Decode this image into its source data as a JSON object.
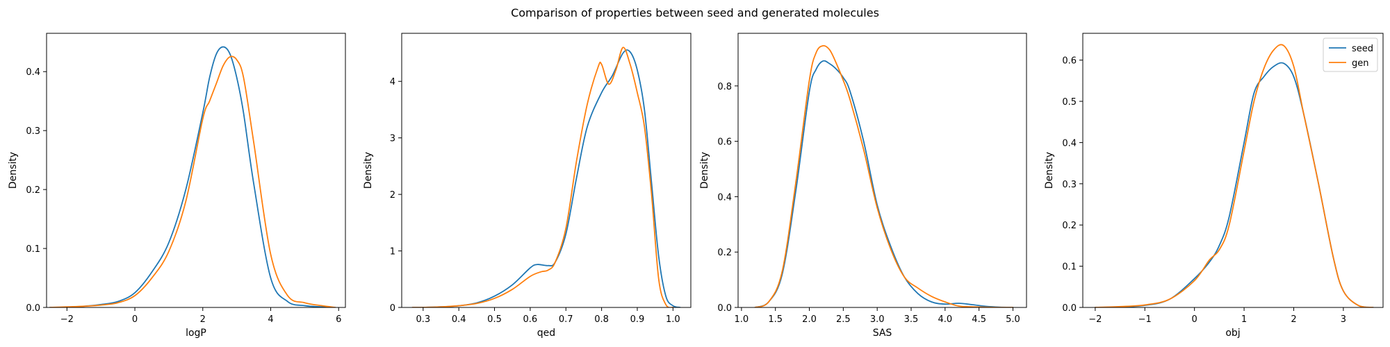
{
  "figure": {
    "title": "Comparison of properties between seed and generated molecules"
  },
  "legend": {
    "placement": "top-right",
    "entries": [
      {
        "label": "seed",
        "color": "#1f77b4"
      },
      {
        "label": "gen",
        "color": "#ff7f0e"
      }
    ]
  },
  "chart_data": [
    {
      "type": "line",
      "title": "",
      "xlabel": "logP",
      "ylabel": "Density",
      "xlim": [
        -2.6,
        6.2
      ],
      "ylim": [
        0,
        0.465
      ],
      "xticks": [
        -2,
        0,
        2,
        4,
        6
      ],
      "xtick_labels": [
        "−2",
        "0",
        "2",
        "4",
        "6"
      ],
      "yticks": [
        0,
        0.1,
        0.2,
        0.3,
        0.4
      ],
      "ytick_labels": [
        "0.0",
        "0.1",
        "0.2",
        "0.3",
        "0.4"
      ],
      "series": [
        {
          "name": "seed",
          "color": "#1f77b4",
          "x": [
            -2.5,
            -2.0,
            -1.5,
            -1.0,
            -0.5,
            0.0,
            0.5,
            1.0,
            1.5,
            2.0,
            2.2,
            2.4,
            2.6,
            2.8,
            3.0,
            3.2,
            3.5,
            4.0,
            4.5,
            5.0,
            5.5,
            5.9
          ],
          "y": [
            0.0,
            0.0,
            0.002,
            0.005,
            0.01,
            0.025,
            0.06,
            0.11,
            0.2,
            0.33,
            0.39,
            0.43,
            0.442,
            0.43,
            0.39,
            0.33,
            0.21,
            0.05,
            0.01,
            0.003,
            0.001,
            0.0
          ]
        },
        {
          "name": "gen",
          "color": "#ff7f0e",
          "x": [
            -2.5,
            -2.0,
            -1.5,
            -1.0,
            -0.5,
            0.0,
            0.5,
            1.0,
            1.5,
            2.0,
            2.2,
            2.4,
            2.6,
            2.8,
            3.0,
            3.2,
            3.5,
            4.0,
            4.5,
            5.0,
            5.5,
            5.9
          ],
          "y": [
            0.0,
            0.001,
            0.002,
            0.004,
            0.008,
            0.02,
            0.05,
            0.095,
            0.18,
            0.32,
            0.35,
            0.38,
            0.41,
            0.425,
            0.42,
            0.39,
            0.28,
            0.09,
            0.02,
            0.008,
            0.003,
            0.0
          ]
        }
      ]
    },
    {
      "type": "line",
      "title": "",
      "xlabel": "qed",
      "ylabel": "Density",
      "xlim": [
        0.24,
        1.05
      ],
      "ylim": [
        0,
        4.85
      ],
      "xticks": [
        0.3,
        0.4,
        0.5,
        0.6,
        0.7,
        0.8,
        0.9,
        1.0
      ],
      "xtick_labels": [
        "0.3",
        "0.4",
        "0.5",
        "0.6",
        "0.7",
        "0.8",
        "0.9",
        "1.0"
      ],
      "yticks": [
        0,
        1,
        2,
        3,
        4
      ],
      "ytick_labels": [
        "0",
        "1",
        "2",
        "3",
        "4"
      ],
      "series": [
        {
          "name": "seed",
          "color": "#1f77b4",
          "x": [
            0.27,
            0.3,
            0.35,
            0.4,
            0.45,
            0.5,
            0.55,
            0.6,
            0.62,
            0.65,
            0.67,
            0.7,
            0.73,
            0.76,
            0.8,
            0.83,
            0.86,
            0.88,
            0.9,
            0.92,
            0.94,
            0.96,
            0.98,
            1.0,
            1.02
          ],
          "y": [
            0.0,
            0.0,
            0.01,
            0.03,
            0.08,
            0.2,
            0.4,
            0.7,
            0.76,
            0.74,
            0.8,
            1.3,
            2.3,
            3.2,
            3.8,
            4.1,
            4.5,
            4.52,
            4.2,
            3.5,
            2.2,
            0.9,
            0.2,
            0.03,
            0.0
          ]
        },
        {
          "name": "gen",
          "color": "#ff7f0e",
          "x": [
            0.27,
            0.3,
            0.35,
            0.4,
            0.45,
            0.5,
            0.55,
            0.6,
            0.63,
            0.65,
            0.67,
            0.7,
            0.73,
            0.76,
            0.79,
            0.8,
            0.82,
            0.84,
            0.86,
            0.88,
            0.9,
            0.92,
            0.94,
            0.96,
            0.98,
            1.0
          ],
          "y": [
            0.0,
            0.0,
            0.01,
            0.03,
            0.07,
            0.16,
            0.32,
            0.55,
            0.63,
            0.66,
            0.8,
            1.4,
            2.6,
            3.6,
            4.25,
            4.3,
            3.95,
            4.2,
            4.6,
            4.3,
            3.8,
            3.2,
            2.0,
            0.5,
            0.05,
            0.0
          ]
        }
      ]
    },
    {
      "type": "line",
      "title": "",
      "xlabel": "SAS",
      "ylabel": "Density",
      "xlim": [
        0.95,
        5.2
      ],
      "ylim": [
        0,
        0.99
      ],
      "xticks": [
        1.0,
        1.5,
        2.0,
        2.5,
        3.0,
        3.5,
        4.0,
        4.5,
        5.0
      ],
      "xtick_labels": [
        "1.0",
        "1.5",
        "2.0",
        "2.5",
        "3.0",
        "3.5",
        "4.0",
        "4.5",
        "5.0"
      ],
      "yticks": [
        0,
        0.2,
        0.4,
        0.6,
        0.8
      ],
      "ytick_labels": [
        "0.0",
        "0.2",
        "0.4",
        "0.6",
        "0.8"
      ],
      "series": [
        {
          "name": "seed",
          "color": "#1f77b4",
          "x": [
            1.2,
            1.4,
            1.6,
            1.8,
            2.0,
            2.1,
            2.2,
            2.3,
            2.4,
            2.5,
            2.6,
            2.8,
            3.0,
            3.2,
            3.4,
            3.6,
            3.8,
            4.0,
            4.2,
            4.4,
            4.6,
            4.8,
            5.0
          ],
          "y": [
            0.0,
            0.02,
            0.12,
            0.42,
            0.78,
            0.86,
            0.89,
            0.88,
            0.86,
            0.83,
            0.78,
            0.6,
            0.37,
            0.22,
            0.11,
            0.05,
            0.02,
            0.012,
            0.015,
            0.01,
            0.004,
            0.001,
            0.0
          ]
        },
        {
          "name": "gen",
          "color": "#ff7f0e",
          "x": [
            1.2,
            1.4,
            1.6,
            1.8,
            2.0,
            2.1,
            2.2,
            2.3,
            2.4,
            2.5,
            2.6,
            2.8,
            3.0,
            3.2,
            3.4,
            3.6,
            3.8,
            4.0,
            4.2,
            4.4,
            4.6,
            4.8,
            5.0
          ],
          "y": [
            0.0,
            0.02,
            0.13,
            0.45,
            0.82,
            0.92,
            0.945,
            0.93,
            0.88,
            0.82,
            0.75,
            0.57,
            0.36,
            0.21,
            0.11,
            0.07,
            0.04,
            0.02,
            0.005,
            0.002,
            0.001,
            0.0,
            0.0
          ]
        }
      ]
    },
    {
      "type": "line",
      "title": "",
      "xlabel": "obj",
      "ylabel": "Density",
      "xlim": [
        -2.25,
        3.8
      ],
      "ylim": [
        0,
        0.665
      ],
      "xticks": [
        -2,
        -1,
        0,
        1,
        2,
        3
      ],
      "xtick_labels": [
        "−2",
        "−1",
        "0",
        "1",
        "2",
        "3"
      ],
      "yticks": [
        0,
        0.1,
        0.2,
        0.3,
        0.4,
        0.5,
        0.6
      ],
      "ytick_labels": [
        "0.0",
        "0.1",
        "0.2",
        "0.3",
        "0.4",
        "0.5",
        "0.6"
      ],
      "series": [
        {
          "name": "seed",
          "color": "#1f77b4",
          "x": [
            -2.0,
            -1.5,
            -1.0,
            -0.5,
            0.0,
            0.3,
            0.5,
            0.7,
            1.0,
            1.2,
            1.4,
            1.6,
            1.8,
            2.0,
            2.2,
            2.5,
            2.8,
            3.0,
            3.3,
            3.6
          ],
          "y": [
            0.0,
            0.001,
            0.005,
            0.02,
            0.07,
            0.11,
            0.15,
            0.22,
            0.4,
            0.52,
            0.56,
            0.585,
            0.592,
            0.56,
            0.47,
            0.3,
            0.12,
            0.04,
            0.005,
            0.0
          ]
        },
        {
          "name": "gen",
          "color": "#ff7f0e",
          "x": [
            -2.0,
            -1.5,
            -1.0,
            -0.5,
            0.0,
            0.3,
            0.5,
            0.7,
            1.0,
            1.2,
            1.4,
            1.6,
            1.8,
            2.0,
            2.2,
            2.5,
            2.8,
            3.0,
            3.3,
            3.6
          ],
          "y": [
            0.0,
            0.002,
            0.006,
            0.02,
            0.065,
            0.115,
            0.14,
            0.2,
            0.38,
            0.5,
            0.58,
            0.625,
            0.635,
            0.585,
            0.47,
            0.3,
            0.12,
            0.04,
            0.005,
            0.0
          ]
        }
      ]
    }
  ]
}
